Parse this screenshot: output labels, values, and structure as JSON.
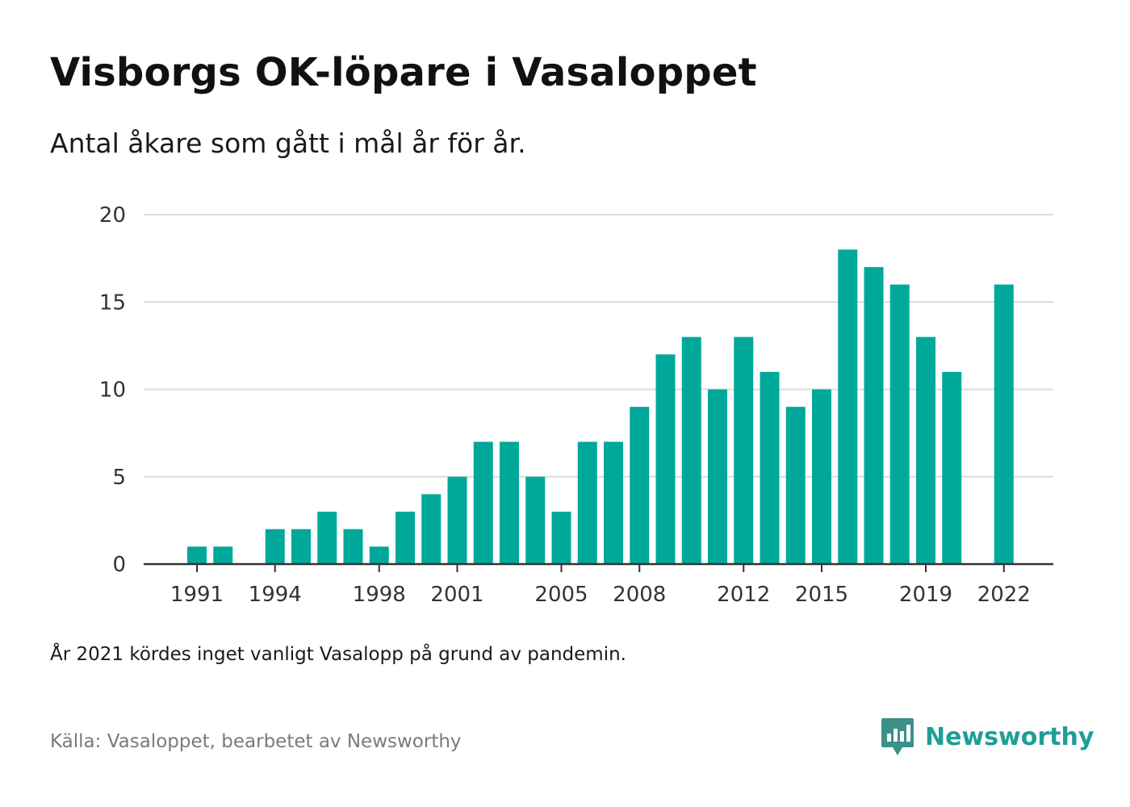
{
  "title": "Visborgs OK-löpare i Vasaloppet",
  "subtitle": "Antal åkare som gått i mål år för år.",
  "note": "År 2021 kördes inget vanligt Vasalopp på grund av pandemin.",
  "source": "Källa: Vasaloppet, bearbetet av Newsworthy",
  "brand": {
    "name": "Newsworthy",
    "icon": "newsworthy-logo-icon",
    "color": "#1e9e96"
  },
  "chart_data": {
    "type": "bar",
    "title": "",
    "xlabel": "",
    "ylabel": "",
    "ylim": [
      0,
      20
    ],
    "yticks": [
      0,
      5,
      10,
      15,
      20
    ],
    "xticks": [
      1991,
      1994,
      1998,
      2001,
      2005,
      2008,
      2012,
      2015,
      2019,
      2022
    ],
    "grid": true,
    "bar_color": "#00a89a",
    "categories": [
      1990,
      1991,
      1992,
      1993,
      1994,
      1995,
      1996,
      1997,
      1998,
      1999,
      2000,
      2001,
      2002,
      2003,
      2004,
      2005,
      2006,
      2007,
      2008,
      2009,
      2010,
      2011,
      2012,
      2013,
      2014,
      2015,
      2016,
      2017,
      2018,
      2019,
      2020,
      2021,
      2022
    ],
    "values": [
      0,
      1,
      1,
      0,
      2,
      2,
      3,
      2,
      1,
      3,
      4,
      5,
      7,
      7,
      5,
      3,
      7,
      7,
      9,
      12,
      13,
      10,
      13,
      11,
      9,
      10,
      18,
      17,
      16,
      13,
      11,
      null,
      16
    ]
  }
}
